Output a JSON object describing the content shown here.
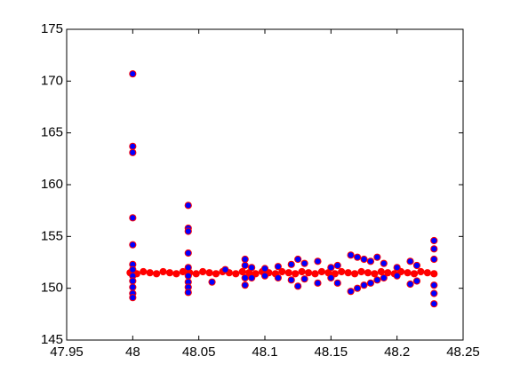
{
  "chart_data": {
    "type": "scatter",
    "xlim": [
      47.95,
      48.25
    ],
    "xticks": [
      47.95,
      48,
      48.05,
      48.1,
      48.15,
      48.2,
      48.25
    ],
    "ylim": [
      145,
      175
    ],
    "yticks": [
      145,
      150,
      155,
      160,
      165,
      170,
      175
    ],
    "series": [
      {
        "color": "#ff0000",
        "edgecolor": "#ff0000",
        "x": [
          47.998,
          48.003,
          48.008,
          48.013,
          48.018,
          48.023,
          48.028,
          48.033,
          48.038,
          48.043,
          48.048,
          48.053,
          48.058,
          48.063,
          48.068,
          48.073,
          48.078,
          48.083,
          48.088,
          48.093,
          48.098,
          48.103,
          48.108,
          48.113,
          48.118,
          48.123,
          48.128,
          48.133,
          48.138,
          48.143,
          48.148,
          48.153,
          48.158,
          48.163,
          48.168,
          48.173,
          48.178,
          48.183,
          48.188,
          48.193,
          48.198,
          48.203,
          48.208,
          48.213,
          48.218,
          48.223,
          48.228
        ],
        "values": [
          151.5,
          151.4,
          151.6,
          151.5,
          151.4,
          151.6,
          151.5,
          151.4,
          151.6,
          151.5,
          151.4,
          151.6,
          151.5,
          151.4,
          151.6,
          151.5,
          151.4,
          151.6,
          151.5,
          151.4,
          151.6,
          151.5,
          151.4,
          151.6,
          151.5,
          151.4,
          151.6,
          151.5,
          151.4,
          151.6,
          151.5,
          151.4,
          151.6,
          151.5,
          151.4,
          151.6,
          151.5,
          151.4,
          151.6,
          151.5,
          151.4,
          151.6,
          151.5,
          151.4,
          151.6,
          151.5,
          151.4
        ]
      },
      {
        "color": "#0000ff",
        "edgecolor": "#ff0000",
        "x": [
          48,
          48,
          48,
          48,
          48,
          48,
          48,
          48,
          48,
          48,
          48,
          48,
          48.042,
          48.042,
          48.042,
          48.042,
          48.042,
          48.042,
          48.042,
          48.042,
          48.042,
          48.06,
          48.07,
          48.085,
          48.085,
          48.085,
          48.085,
          48.09,
          48.09,
          48.1,
          48.1,
          48.11,
          48.11,
          48.12,
          48.12,
          48.125,
          48.125,
          48.13,
          48.13,
          48.14,
          48.14,
          48.15,
          48.15,
          48.155,
          48.155,
          48.165,
          48.165,
          48.17,
          48.17,
          48.175,
          48.175,
          48.18,
          48.18,
          48.185,
          48.185,
          48.19,
          48.19,
          48.2,
          48.2,
          48.21,
          48.21,
          48.215,
          48.215,
          48.228,
          48.228,
          48.228,
          48.228,
          48.228,
          48.228
        ],
        "values": [
          170.7,
          163.7,
          163.1,
          156.8,
          154.2,
          152.3,
          151.8,
          151.2,
          150.7,
          150.1,
          149.5,
          149.1,
          158.0,
          155.8,
          155.5,
          153.4,
          152.0,
          151.2,
          150.6,
          150.1,
          149.6,
          150.6,
          151.8,
          152.8,
          152.2,
          151.0,
          150.3,
          152.0,
          151.0,
          151.9,
          151.2,
          152.1,
          151.0,
          152.3,
          150.8,
          152.8,
          150.2,
          152.4,
          150.9,
          152.6,
          150.5,
          152.0,
          151.0,
          152.2,
          150.5,
          153.2,
          149.7,
          153.0,
          150.0,
          152.8,
          150.3,
          152.6,
          150.5,
          153.0,
          150.8,
          152.4,
          151.0,
          152.0,
          151.2,
          152.6,
          150.4,
          152.2,
          150.7,
          154.6,
          153.8,
          152.8,
          150.3,
          149.5,
          148.5
        ]
      }
    ]
  }
}
